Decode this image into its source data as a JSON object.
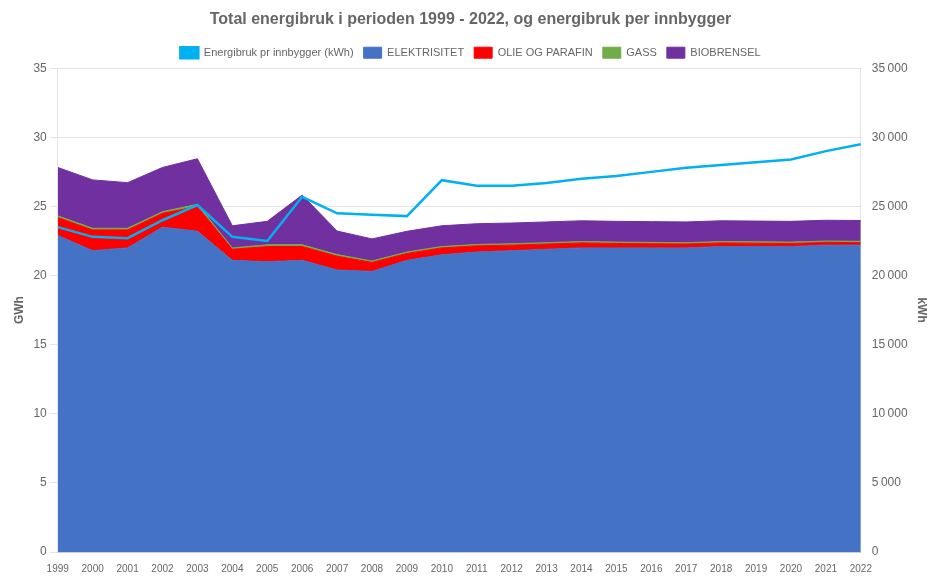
{
  "chart_data": {
    "type": "area",
    "title": "Total energibruk i perioden 1999 - 2022, og energibruk per innbygger",
    "x": [
      1999,
      2000,
      2001,
      2002,
      2003,
      2004,
      2005,
      2006,
      2007,
      2008,
      2009,
      2010,
      2011,
      2012,
      2013,
      2014,
      2015,
      2016,
      2017,
      2018,
      2019,
      2020,
      2021,
      2022
    ],
    "xlim": [
      1999,
      2022
    ],
    "xticks": [
      1999,
      2000,
      2001,
      2002,
      2003,
      2004,
      2005,
      2006,
      2007,
      2008,
      2009,
      2010,
      2011,
      2012,
      2013,
      2014,
      2015,
      2016,
      2017,
      2018,
      2019,
      2020,
      2021,
      2022
    ],
    "ylabel": "GWh",
    "y2label": "kWh",
    "ylim": [
      0,
      35
    ],
    "yticks": [
      0,
      5,
      10,
      15,
      20,
      25,
      30,
      35
    ],
    "y2lim": [
      0,
      35000
    ],
    "y2ticks": [
      0,
      {
        "value": 5000,
        "label": "5 000"
      },
      {
        "value": 10000,
        "label": "10 000"
      },
      {
        "value": 15000,
        "label": "15 000"
      },
      {
        "value": 20000,
        "label": "20 000"
      },
      {
        "value": 25000,
        "label": "25 000"
      },
      {
        "value": 30000,
        "label": "30 000"
      },
      {
        "value": 35000,
        "label": "35 000"
      }
    ],
    "stacked": true,
    "grid": true,
    "legend": "top",
    "series": [
      {
        "name": "ELEKTRISITET",
        "color": "#4472C4",
        "type": "area",
        "values": [
          22.9,
          21.8,
          22.0,
          23.5,
          23.2,
          21.1,
          21.0,
          21.1,
          20.4,
          20.3,
          21.1,
          21.5,
          21.7,
          21.8,
          21.9,
          22.0,
          22.0,
          22.0,
          22.0,
          22.1,
          22.1,
          22.1,
          22.2,
          22.2
        ]
      },
      {
        "name": "OLIE OG PARAFIN",
        "color": "#FF0000",
        "type": "area",
        "values": [
          1.3,
          1.5,
          1.3,
          1.0,
          1.8,
          0.8,
          1.1,
          1.0,
          1.0,
          0.65,
          0.5,
          0.5,
          0.45,
          0.4,
          0.38,
          0.36,
          0.32,
          0.3,
          0.28,
          0.26,
          0.24,
          0.22,
          0.2,
          0.18
        ]
      },
      {
        "name": "GASS",
        "color": "#70AD47",
        "type": "area",
        "values": [
          0.12,
          0.12,
          0.12,
          0.12,
          0.15,
          0.1,
          0.12,
          0.12,
          0.12,
          0.1,
          0.1,
          0.1,
          0.1,
          0.1,
          0.1,
          0.1,
          0.1,
          0.1,
          0.1,
          0.1,
          0.1,
          0.1,
          0.1,
          0.1
        ]
      },
      {
        "name": "BIOBRENSEL",
        "color": "#7030A0",
        "type": "area",
        "values": [
          3.5,
          3.5,
          3.3,
          3.2,
          3.3,
          1.6,
          1.7,
          3.6,
          1.7,
          1.6,
          1.5,
          1.5,
          1.5,
          1.5,
          1.5,
          1.5,
          1.5,
          1.5,
          1.5,
          1.5,
          1.5,
          1.5,
          1.5,
          1.5
        ]
      },
      {
        "name": "Energibruk pr innbygger (kWh)",
        "color": "#00B0F0",
        "type": "line",
        "axis": "y2",
        "values": [
          23500,
          22800,
          22700,
          24000,
          25100,
          22800,
          22500,
          25700,
          24500,
          24400,
          24300,
          26900,
          26500,
          26500,
          26700,
          27000,
          27200,
          27500,
          27800,
          28000,
          28200,
          28400,
          29000,
          29500
        ]
      }
    ]
  }
}
